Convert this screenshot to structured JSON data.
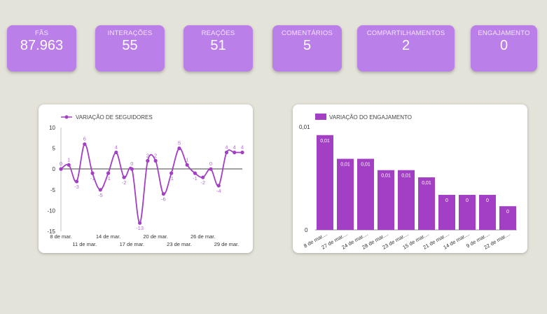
{
  "kpis": [
    {
      "label": "FÃS",
      "value": "87.963"
    },
    {
      "label": "INTERAÇÕES",
      "value": "55"
    },
    {
      "label": "REAÇÕES",
      "value": "51"
    },
    {
      "label": "COMENTÁRIOS",
      "value": "5"
    },
    {
      "label": "COMPARTILHAMENTOS",
      "value": "2"
    },
    {
      "label": "ENGAJAMENTO",
      "value": "0"
    }
  ],
  "colors": {
    "kpi_bg": "#bb7fe9",
    "accent": "#a23fc4",
    "background": "#e4e3d9"
  },
  "chart_data": [
    {
      "type": "line",
      "title": "",
      "legend": "VARIAÇÃO DE SEGUIDORES",
      "ylim": [
        -15,
        10
      ],
      "yticks": [
        "10",
        "5",
        "0",
        "-5",
        "-10",
        "-15"
      ],
      "x_labels_top": [
        "8 de mar.",
        "14 de mar.",
        "20 de mar.",
        "26 de mar."
      ],
      "x_labels_bottom": [
        "11 de mar.",
        "17 de mar.",
        "23 de mar.",
        "29 de mar."
      ],
      "values": [
        0,
        1,
        -3,
        6,
        -1,
        -5,
        -1,
        4,
        -2,
        0,
        -13,
        2,
        2,
        -6,
        -1,
        5,
        1,
        -1,
        -2,
        0,
        -4,
        4,
        4,
        4
      ],
      "point_labels": [
        "0",
        "1",
        "-3",
        "6",
        "-1",
        "-5",
        "-1",
        "4",
        "-2",
        "0",
        "-13",
        "2",
        "2",
        "-6",
        "-1",
        "5",
        "1",
        "-1",
        "-2",
        "0",
        "-4",
        "4",
        "4",
        "4"
      ]
    },
    {
      "type": "bar",
      "legend": "VARIAÇÃO DO ENGAJAMENTO",
      "ytick_top": "0,01",
      "ytick_bottom": "0",
      "categories": [
        "8 de mar....",
        "27 de mar....",
        "24 de mar....",
        "28 de mar....",
        "23 de mar....",
        "15 de mar....",
        "21 de mar....",
        "14 de mar....",
        "9 de mar....",
        "22 de mar...."
      ],
      "values": [
        0.0092,
        0.0069,
        0.0069,
        0.0058,
        0.0058,
        0.0051,
        0.0034,
        0.0034,
        0.0034,
        0.0023
      ],
      "value_labels": [
        "0,01",
        "0,01",
        "0,01",
        "0,01",
        "0,01",
        "0,01",
        "0",
        "0",
        "0",
        "0"
      ],
      "ymax": 0.01
    }
  ]
}
